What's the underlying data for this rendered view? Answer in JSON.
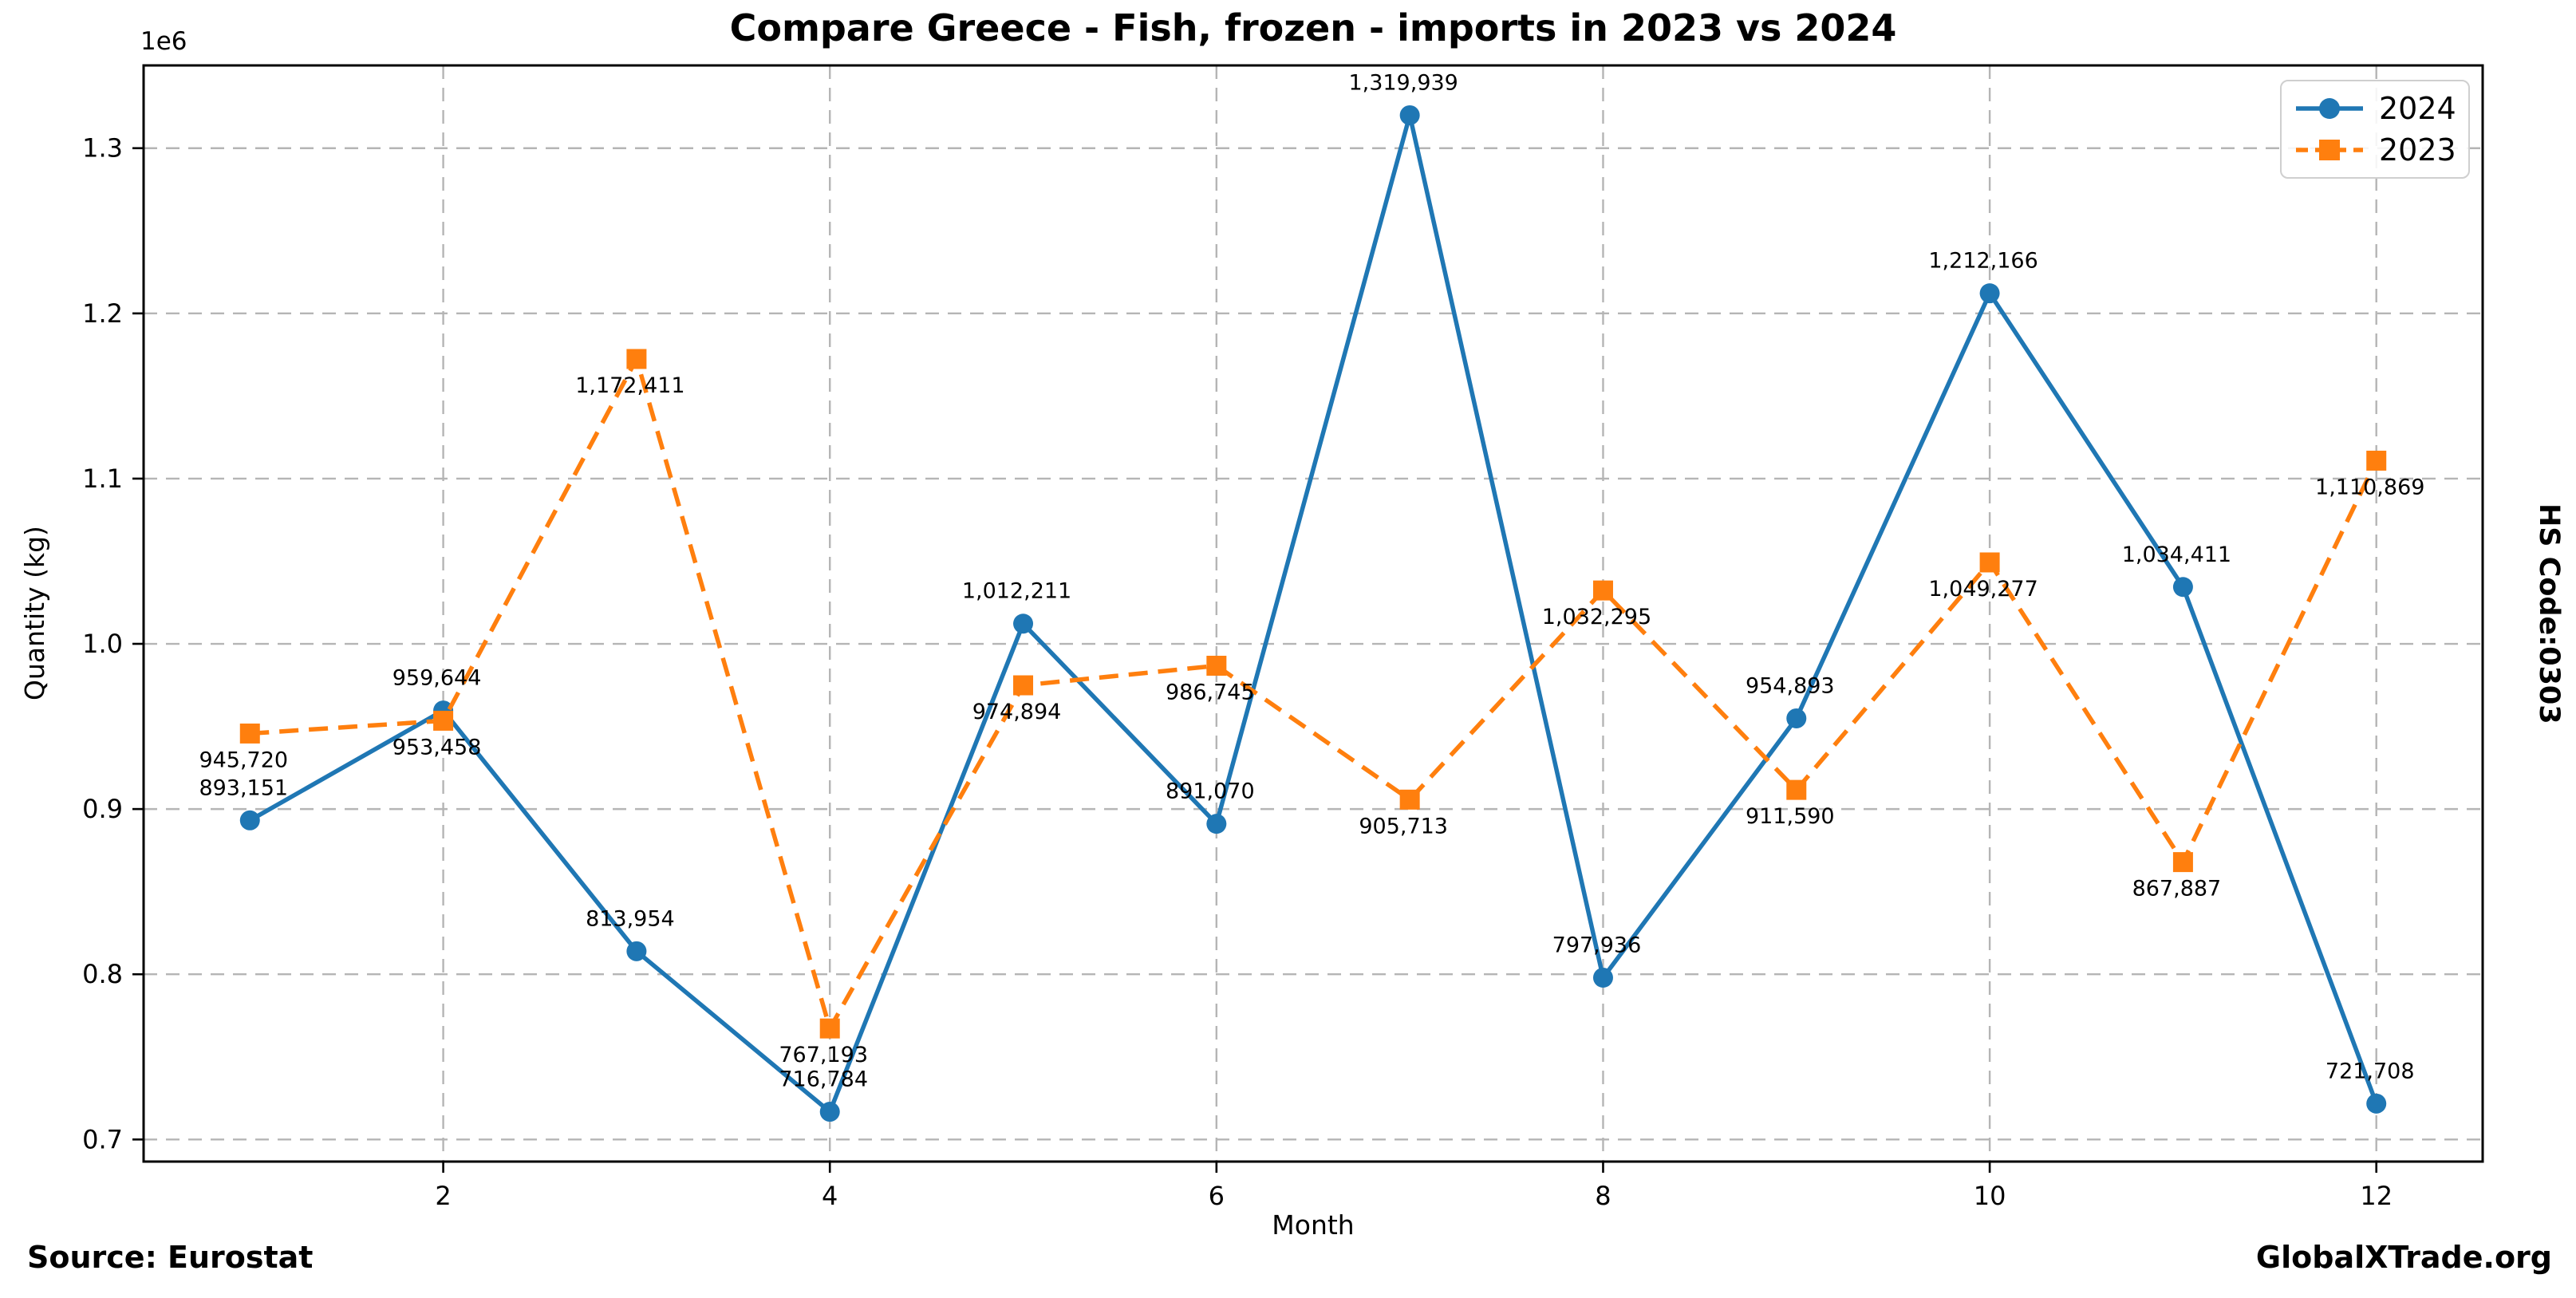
{
  "chart_data": {
    "type": "line",
    "title": "Compare Greece - Fish, frozen - imports in 2023 vs 2024",
    "xlabel": "Month",
    "ylabel": "Quantity (kg)",
    "y_offset_label": "1e6",
    "x": [
      1,
      2,
      3,
      4,
      5,
      6,
      7,
      8,
      9,
      10,
      11,
      12
    ],
    "xticks": [
      2,
      4,
      6,
      8,
      10,
      12
    ],
    "yticks": [
      0.7,
      0.8,
      0.9,
      1.0,
      1.1,
      1.2,
      1.3
    ],
    "xlim": [
      0.45,
      12.55
    ],
    "ylim": [
      686626,
      1350097
    ],
    "grid": true,
    "grid_color": "#b5b5b5",
    "legend_position": "upper right",
    "series": [
      {
        "name": "2024",
        "color": "#1f77b4",
        "style": "solid",
        "marker": "circle",
        "label_side": "above",
        "label_dx": -8,
        "label_dy": -32,
        "values": [
          893151,
          959644,
          813954,
          716784,
          1012211,
          891070,
          1319939,
          797936,
          954893,
          1212166,
          1034411,
          721708
        ]
      },
      {
        "name": "2023",
        "color": "#ff7f0e",
        "style": "dashed",
        "marker": "square",
        "label_side": "below",
        "label_dx": -8,
        "label_dy": 42,
        "values": [
          945720,
          953458,
          1172411,
          767193,
          974894,
          986745,
          905713,
          1032295,
          911590,
          1049277,
          867887,
          1110869
        ]
      }
    ]
  },
  "annotations": {
    "source": "Source: Eurostat",
    "brand": "GlobalXTrade.org",
    "hs_code": "HS Code:0303"
  }
}
